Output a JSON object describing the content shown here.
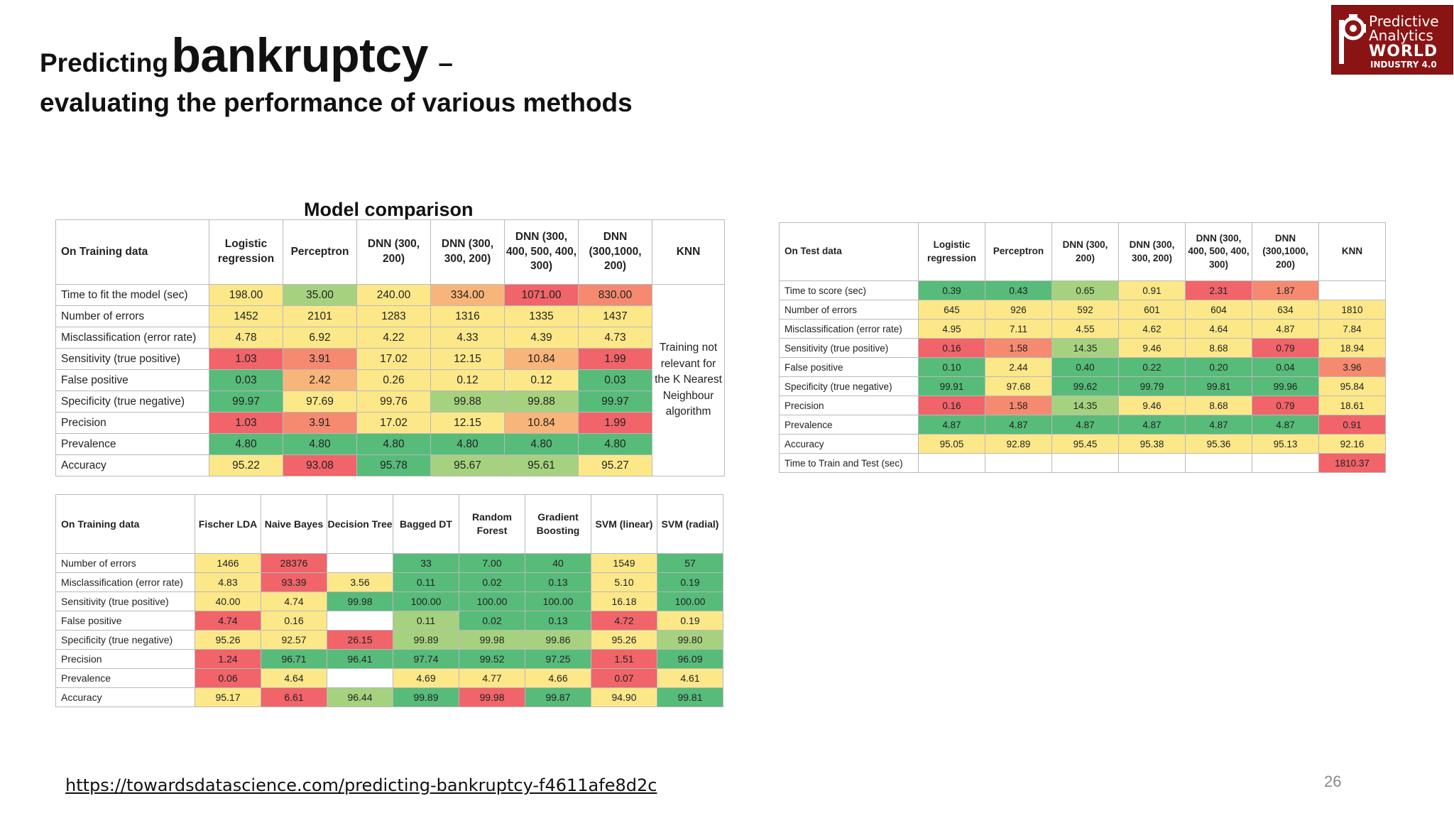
{
  "title": {
    "prefix": "Predicting",
    "main": "bankruptcy",
    "dash": "–"
  },
  "subtitle": "evaluating the performance of various methods",
  "logo": {
    "line1": "Predictive",
    "line2": "Analytics",
    "line3": "WORLD",
    "line4": "INDUSTRY 4.0"
  },
  "section_title": "Model comparison",
  "colors": {
    "green": "#57bb7a",
    "lightgreen": "#a6d27f",
    "yellow": "#fce889",
    "orange": "#f8b57a",
    "red": "#f0646a",
    "lightred": "#f58a70"
  },
  "table_training": {
    "header": [
      "On Training data",
      "Logistic regression",
      "Perceptron",
      "DNN (300, 200)",
      "DNN (300, 300, 200)",
      "DNN (300, 400, 500, 400, 300)",
      "DNN (300,1000, 200)",
      "KNN"
    ],
    "knn_note": "Training not relevant for the K Nearest Neighbour algorithm",
    "rows": [
      {
        "label": "Time to fit the model (sec)",
        "values": [
          "198.00",
          "35.00",
          "240.00",
          "334.00",
          "1071.00",
          "830.00"
        ],
        "colors": [
          "yellow",
          "lightgreen",
          "yellow",
          "orange",
          "red",
          "lightred"
        ]
      },
      {
        "label": "Number of errors",
        "values": [
          "1452",
          "2101",
          "1283",
          "1316",
          "1335",
          "1437"
        ],
        "colors": [
          "yellow",
          "yellow",
          "yellow",
          "yellow",
          "yellow",
          "yellow"
        ]
      },
      {
        "label": "Misclassification (error rate)",
        "values": [
          "4.78",
          "6.92",
          "4.22",
          "4.33",
          "4.39",
          "4.73"
        ],
        "colors": [
          "yellow",
          "yellow",
          "yellow",
          "yellow",
          "yellow",
          "yellow"
        ]
      },
      {
        "label": "Sensitivity (true positive)",
        "values": [
          "1.03",
          "3.91",
          "17.02",
          "12.15",
          "10.84",
          "1.99"
        ],
        "colors": [
          "red",
          "lightred",
          "yellow",
          "yellow",
          "orange",
          "red"
        ]
      },
      {
        "label": "False positive",
        "values": [
          "0.03",
          "2.42",
          "0.26",
          "0.12",
          "0.12",
          "0.03"
        ],
        "colors": [
          "green",
          "orange",
          "yellow",
          "yellow",
          "yellow",
          "green"
        ]
      },
      {
        "label": "Specificity (true negative)",
        "values": [
          "99.97",
          "97.69",
          "99.76",
          "99.88",
          "99.88",
          "99.97"
        ],
        "colors": [
          "green",
          "yellow",
          "yellow",
          "lightgreen",
          "lightgreen",
          "green"
        ]
      },
      {
        "label": "Precision",
        "values": [
          "1.03",
          "3.91",
          "17.02",
          "12.15",
          "10.84",
          "1.99"
        ],
        "colors": [
          "red",
          "lightred",
          "yellow",
          "yellow",
          "orange",
          "red"
        ]
      },
      {
        "label": "Prevalence",
        "values": [
          "4.80",
          "4.80",
          "4.80",
          "4.80",
          "4.80",
          "4.80"
        ],
        "colors": [
          "green",
          "green",
          "green",
          "green",
          "green",
          "green"
        ]
      },
      {
        "label": "Accuracy",
        "values": [
          "95.22",
          "93.08",
          "95.78",
          "95.67",
          "95.61",
          "95.27"
        ],
        "colors": [
          "yellow",
          "red",
          "green",
          "lightgreen",
          "lightgreen",
          "yellow"
        ]
      }
    ]
  },
  "table_test": {
    "header": [
      "On Test data",
      "Logistic regression",
      "Perceptron",
      "DNN (300, 200)",
      "DNN (300, 300, 200)",
      "DNN (300, 400, 500, 400, 300)",
      "DNN (300,1000, 200)",
      "KNN"
    ],
    "rows": [
      {
        "label": "Time to score (sec)",
        "values": [
          "0.39",
          "0.43",
          "0.65",
          "0.91",
          "2.31",
          "1.87",
          ""
        ],
        "colors": [
          "green",
          "green",
          "lightgreen",
          "yellow",
          "red",
          "lightred",
          "white"
        ]
      },
      {
        "label": "Number of errors",
        "values": [
          "645",
          "926",
          "592",
          "601",
          "604",
          "634",
          "1810"
        ],
        "colors": [
          "yellow",
          "yellow",
          "yellow",
          "yellow",
          "yellow",
          "yellow",
          "yellow"
        ]
      },
      {
        "label": "Misclassification (error rate)",
        "values": [
          "4.95",
          "7.11",
          "4.55",
          "4.62",
          "4.64",
          "4.87",
          "7.84"
        ],
        "colors": [
          "yellow",
          "yellow",
          "yellow",
          "yellow",
          "yellow",
          "yellow",
          "yellow"
        ]
      },
      {
        "label": "Sensitivity (true positive)",
        "values": [
          "0.16",
          "1.58",
          "14.35",
          "9.46",
          "8.68",
          "0.79",
          "18.94"
        ],
        "colors": [
          "red",
          "lightred",
          "lightgreen",
          "yellow",
          "yellow",
          "red",
          "yellow"
        ]
      },
      {
        "label": "False positive",
        "values": [
          "0.10",
          "2.44",
          "0.40",
          "0.22",
          "0.20",
          "0.04",
          "3.96"
        ],
        "colors": [
          "green",
          "yellow",
          "green",
          "green",
          "green",
          "green",
          "lightred"
        ]
      },
      {
        "label": "Specificity (true negative)",
        "values": [
          "99.91",
          "97.68",
          "99.62",
          "99.79",
          "99.81",
          "99.96",
          "95.84"
        ],
        "colors": [
          "green",
          "yellow",
          "green",
          "green",
          "green",
          "green",
          "yellow"
        ]
      },
      {
        "label": "Precision",
        "values": [
          "0.16",
          "1.58",
          "14.35",
          "9.46",
          "8.68",
          "0.79",
          "18.61"
        ],
        "colors": [
          "red",
          "lightred",
          "lightgreen",
          "yellow",
          "yellow",
          "red",
          "yellow"
        ]
      },
      {
        "label": "Prevalence",
        "values": [
          "4.87",
          "4.87",
          "4.87",
          "4.87",
          "4.87",
          "4.87",
          "0.91"
        ],
        "colors": [
          "green",
          "green",
          "green",
          "green",
          "green",
          "green",
          "red"
        ]
      },
      {
        "label": "Accuracy",
        "values": [
          "95.05",
          "92.89",
          "95.45",
          "95.38",
          "95.36",
          "95.13",
          "92.16"
        ],
        "colors": [
          "yellow",
          "yellow",
          "yellow",
          "yellow",
          "yellow",
          "yellow",
          "yellow"
        ]
      },
      {
        "label": "Time to Train and Test (sec)",
        "values": [
          "",
          "",
          "",
          "",
          "",
          "",
          "1810.37"
        ],
        "colors": [
          "white",
          "white",
          "white",
          "white",
          "white",
          "white",
          "red"
        ]
      }
    ]
  },
  "table_training2": {
    "header": [
      "On Training data",
      "Fischer LDA",
      "Naive Bayes",
      "Decision Tree",
      "Bagged DT",
      "Random Forest",
      "Gradient Boosting",
      "SVM (linear)",
      "SVM (radial)"
    ],
    "rows": [
      {
        "label": "Number of errors",
        "values": [
          "1466",
          "28376",
          "",
          "33",
          "7.00",
          "40",
          "1549",
          "57"
        ],
        "colors": [
          "yellow",
          "red",
          "white",
          "green",
          "green",
          "green",
          "yellow",
          "green"
        ]
      },
      {
        "label": "Misclassification (error rate)",
        "values": [
          "4.83",
          "93.39",
          "3.56",
          "0.11",
          "0.02",
          "0.13",
          "5.10",
          "0.19"
        ],
        "colors": [
          "yellow",
          "red",
          "yellow",
          "green",
          "green",
          "green",
          "yellow",
          "green"
        ]
      },
      {
        "label": "Sensitivity (true positive)",
        "values": [
          "40.00",
          "4.74",
          "99.98",
          "100.00",
          "100.00",
          "100.00",
          "16.18",
          "100.00"
        ],
        "colors": [
          "yellow",
          "yellow",
          "green",
          "green",
          "green",
          "green",
          "yellow",
          "green"
        ]
      },
      {
        "label": "False positive",
        "values": [
          "4.74",
          "0.16",
          "",
          "0.11",
          "0.02",
          "0.13",
          "4.72",
          "0.19"
        ],
        "colors": [
          "red",
          "yellow",
          "white",
          "lightgreen",
          "green",
          "green",
          "red",
          "yellow"
        ]
      },
      {
        "label": "Specificity (true negative)",
        "values": [
          "95.26",
          "92.57",
          "26.15",
          "99.89",
          "99.98",
          "99.86",
          "95.26",
          "99.80"
        ],
        "colors": [
          "yellow",
          "yellow",
          "red",
          "lightgreen",
          "lightgreen",
          "lightgreen",
          "yellow",
          "lightgreen"
        ]
      },
      {
        "label": "Precision",
        "values": [
          "1.24",
          "96.71",
          "96.41",
          "97.74",
          "99.52",
          "97.25",
          "1.51",
          "96.09"
        ],
        "colors": [
          "red",
          "green",
          "green",
          "green",
          "green",
          "green",
          "red",
          "green"
        ]
      },
      {
        "label": "Prevalence",
        "values": [
          "0.06",
          "4.64",
          "",
          "4.69",
          "4.77",
          "4.66",
          "0.07",
          "4.61"
        ],
        "colors": [
          "red",
          "yellow",
          "white",
          "yellow",
          "yellow",
          "yellow",
          "red",
          "yellow"
        ]
      },
      {
        "label": "Accuracy",
        "values": [
          "95.17",
          "6.61",
          "96.44",
          "99.89",
          "99.98",
          "99.87",
          "94.90",
          "99.81"
        ],
        "colors": [
          "yellow",
          "red",
          "lightgreen",
          "green",
          "red",
          "green",
          "yellow",
          "green"
        ]
      }
    ]
  },
  "footer_link": "https://towardsdatascience.com/predicting-bankruptcy-f4611afe8d2c",
  "page_number": "26"
}
